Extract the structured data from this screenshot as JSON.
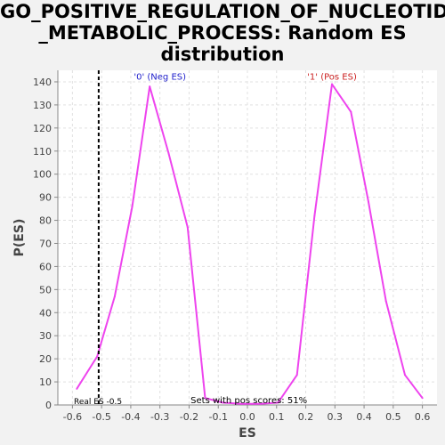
{
  "chart_data": {
    "type": "line",
    "title_lines": [
      "GO_POSITIVE_REGULATION_OF_NUCLEOTIDE",
      "_METABOLIC_PROCESS: Random ES",
      "distribution"
    ],
    "xlabel": "ES",
    "ylabel": "P(ES)",
    "xlim": [
      -0.65,
      0.65
    ],
    "ylim": [
      0,
      145
    ],
    "x_ticks": [
      -0.6,
      -0.5,
      -0.4,
      -0.3,
      -0.2,
      -0.1,
      0.0,
      0.1,
      0.2,
      0.3,
      0.4,
      0.5,
      0.6
    ],
    "x_tick_labels": [
      "-0.6",
      "-0.5",
      "-0.4",
      "-0.3",
      "-0.2",
      "-0.1",
      "0.0",
      "0.1",
      "0.2",
      "0.3",
      "0.4",
      "0.5",
      "0.6"
    ],
    "y_ticks": [
      0,
      10,
      20,
      30,
      40,
      50,
      60,
      70,
      80,
      90,
      100,
      110,
      120,
      130,
      140
    ],
    "y_tick_labels": [
      "0",
      "10",
      "20",
      "30",
      "40",
      "50",
      "60",
      "70",
      "80",
      "90",
      "100",
      "110",
      "120",
      "130",
      "140"
    ],
    "grid": true,
    "series": [
      {
        "color": "#ee44ee",
        "x": [
          -0.585,
          -0.515,
          -0.455,
          -0.395,
          -0.335,
          -0.27,
          -0.205,
          -0.145,
          -0.085,
          -0.02,
          0.045,
          0.105,
          0.17,
          0.23,
          0.29,
          0.355,
          0.415,
          0.475,
          0.54,
          0.6
        ],
        "y": [
          7,
          21,
          47,
          86,
          138,
          109,
          77,
          3,
          1,
          0.5,
          0.5,
          1,
          13,
          82,
          139,
          127,
          88,
          45,
          13,
          3
        ]
      }
    ],
    "vline": {
      "x": -0.51,
      "label": "Real ES -0.5"
    },
    "annotations": [
      {
        "text": "'0' (Neg ES)",
        "x": -0.3,
        "y": 141,
        "color": "#2222cc"
      },
      {
        "text": "'1' (Pos ES)",
        "x": 0.29,
        "y": 141,
        "color": "#cc2222"
      },
      {
        "text": "Sets with pos scores: 51%",
        "x": 0.005,
        "y": 0.8,
        "color": "#000000"
      }
    ],
    "colors": {
      "plot_bg": "#ffffff",
      "page_bg": "#f2f2f2",
      "grid": "#e0e0e0"
    }
  }
}
